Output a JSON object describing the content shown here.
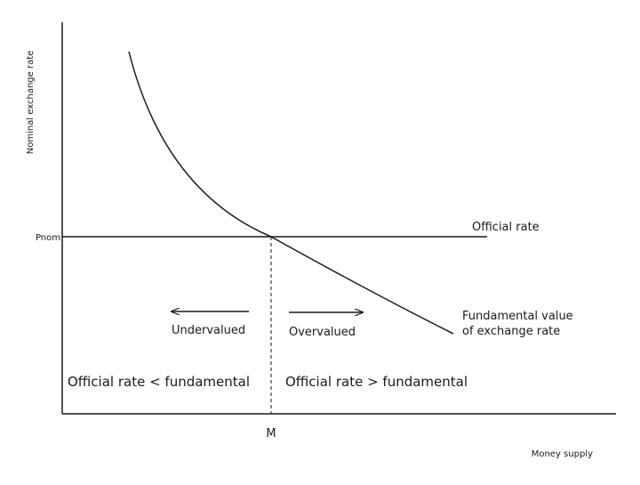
{
  "diagram": {
    "y_axis_label": "Nominal exchange rate",
    "x_axis_label": "Money supply",
    "y_marker_label": "Pnom",
    "x_marker_label": "M",
    "official_rate_label": "Official rate",
    "fundamental_label_line1": "Fundamental value",
    "fundamental_label_line2": "of exchange rate",
    "undervalued_label": "Undervalued",
    "overvalued_label": "Overvalued",
    "left_region_label": "Official rate < fundamental",
    "right_region_label": "Official rate > fundamental"
  },
  "colors": {
    "ink": "#1a1a1a",
    "background": "#ffffff"
  }
}
